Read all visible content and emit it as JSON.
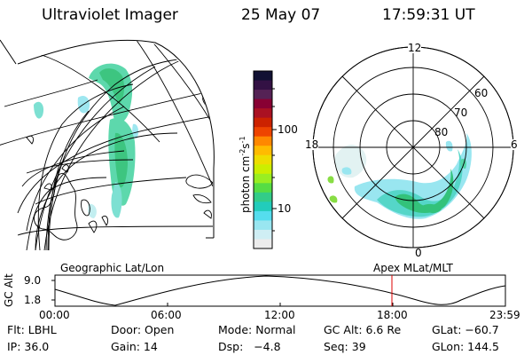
{
  "header": {
    "title": "Ultraviolet Imager",
    "date": "25 May 07",
    "time": "17:59:31 UT"
  },
  "colorbar": {
    "label": "photon cm",
    "label_sup": "-2",
    "label_mid": "s",
    "label_sup2": "-1",
    "ticks": [
      "100",
      "10"
    ],
    "colors": [
      "#111133",
      "#331144",
      "#552255",
      "#880033",
      "#aa1122",
      "#cc2200",
      "#ee4400",
      "#ff8800",
      "#ffbb00",
      "#eedd00",
      "#ccee00",
      "#99ee22",
      "#55dd44",
      "#33cc88",
      "#22ccbb",
      "#55ddee",
      "#99e6f0",
      "#cfeef4",
      "#ececec"
    ]
  },
  "polar": {
    "mlt_labels": {
      "top": "12",
      "left": "18",
      "right": "6",
      "bottom": "0"
    },
    "lat_labels": [
      "60",
      "70",
      "80"
    ]
  },
  "left_panel_caption": "Geographic Lat/Lon",
  "right_panel_caption": "Apex MLat/MLT",
  "altitude_plot": {
    "axis_label": "GC Alt",
    "y_ticks": [
      "9.0",
      "1.8"
    ],
    "time_ticks": [
      "00:00",
      "06:00",
      "12:00",
      "18:00",
      "23:59"
    ],
    "marker_color": "#dd0000"
  },
  "info": {
    "flt": "Flt: LBHL",
    "door": "Door: Open",
    "mode": "Mode: Normal",
    "gc_alt": "GC Alt: 6.6 Re",
    "glat": "GLat: −60.7",
    "ip": "IP: 36.0",
    "gain": "Gain: 14",
    "dsp": "Dsp:   −4.8",
    "seq": "Seq: 39",
    "glon": "GLon: 144.5"
  }
}
